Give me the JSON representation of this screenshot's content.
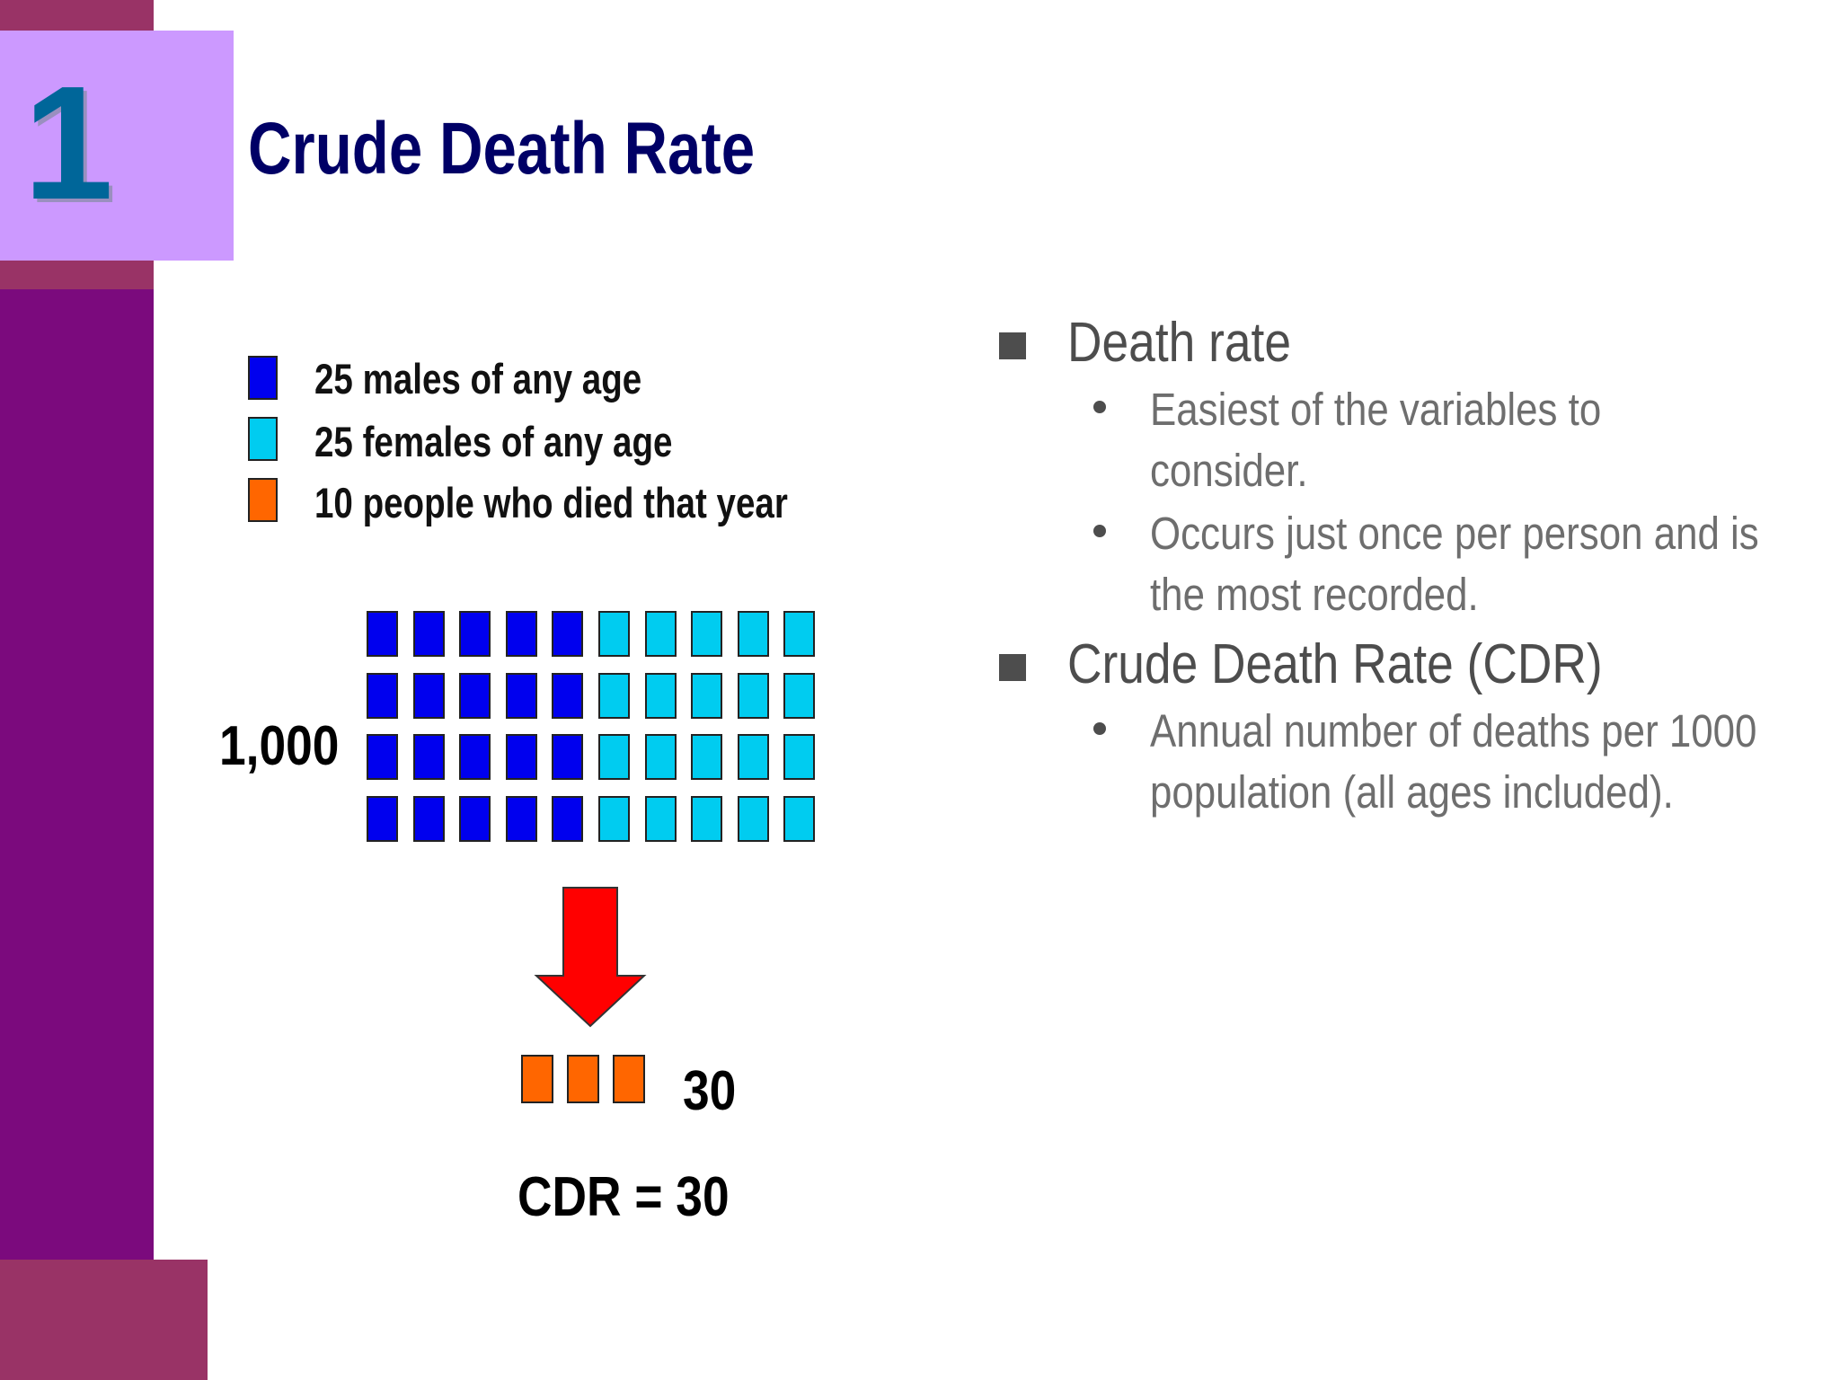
{
  "slide_number": "1",
  "title": "Crude Death Rate",
  "legend": [
    {
      "label": "25 males of any age",
      "color": "#0000ee"
    },
    {
      "label": "25 females of any age",
      "color": "#00ccf0"
    },
    {
      "label": "10 people who died that year",
      "color": "#ff6600"
    }
  ],
  "population_label": "1,000",
  "population_grid": {
    "rows": 4,
    "male_columns": 5,
    "female_columns": 5,
    "male_color": "#0000ee",
    "female_color": "#00ccf0"
  },
  "arrow_color": "#ff0000",
  "deaths": {
    "count": 3,
    "color": "#ff6600",
    "label": "30"
  },
  "cdr_label": "CDR = 30",
  "bullets": [
    {
      "text": "Death rate",
      "sub": [
        {
          "lines": [
            "Easiest of the variables to",
            "consider."
          ]
        },
        {
          "lines": [
            "Occurs just once per person and is",
            "the most recorded."
          ]
        }
      ]
    },
    {
      "text": "Crude Death Rate (CDR)",
      "sub": [
        {
          "lines": [
            "Annual number of deaths per 1000",
            "population (all ages included)."
          ]
        }
      ]
    }
  ]
}
